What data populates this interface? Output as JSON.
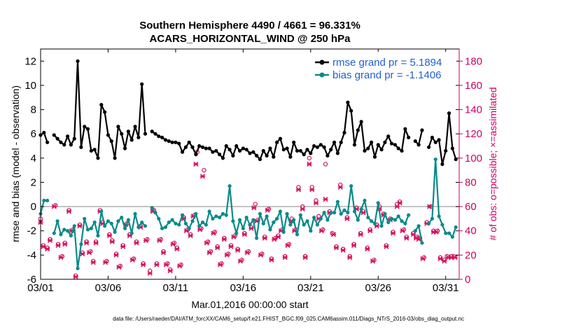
{
  "chart_data": {
    "type": "line",
    "title": "Southern Hemisphere 4490 / 4661 = 96.331%",
    "subtitle": "ACARS_HORIZONTAL_WIND @ 250 hPa",
    "xlabel": "Mar.01,2016 00:00:00 start",
    "ylabel_left": "rmse and bias (model - observation)",
    "ylabel_right": "# of obs: o=possible; ×=assimilated",
    "footnote": "data file: /Users/raeder/DAI/ATM_forcXX/CAM6_setup/f.e21.FHIST_BGC.f09_025.CAM6assim.011/Diags_NTrS_2016-03/obs_diag_output.nc",
    "x_ticks": [
      "03/01",
      "03/06",
      "03/11",
      "03/16",
      "03/21",
      "03/26",
      "03/31"
    ],
    "x_tick_days": [
      1,
      6,
      11,
      16,
      21,
      26,
      31
    ],
    "xlim": [
      1,
      32
    ],
    "ylim_left": [
      -6,
      13
    ],
    "yticks_left": [
      -6,
      -4,
      -2,
      0,
      2,
      4,
      6,
      8,
      10,
      12
    ],
    "ylim_right": [
      0,
      190
    ],
    "yticks_right": [
      0,
      20,
      40,
      60,
      80,
      100,
      120,
      140,
      160,
      180
    ],
    "grid": false,
    "legend_placement": "top-right",
    "legend": [
      "rmse grand pr = 5.1894",
      "bias grand pr = -1.1406"
    ],
    "colors": {
      "rmse": "#000000",
      "bias": "#0a8a8a",
      "obs": "#d6135f",
      "zero_line": "#b0b0b0"
    },
    "series": [
      {
        "name": "rmse grand pr = 5.1894",
        "x": [
          1,
          1.25,
          1.5,
          1.75,
          2,
          2.25,
          2.5,
          2.75,
          3,
          3.25,
          3.5,
          3.75,
          4,
          4.25,
          4.5,
          4.75,
          5,
          5.25,
          5.5,
          5.75,
          6,
          6.25,
          6.5,
          6.75,
          7,
          7.25,
          7.5,
          7.75,
          8,
          8.25,
          8.5,
          8.75,
          9,
          9.25,
          9.5,
          9.75,
          10,
          10.25,
          10.5,
          10.75,
          11,
          11.25,
          11.5,
          11.75,
          12,
          12.25,
          12.5,
          12.75,
          13,
          13.25,
          13.5,
          13.75,
          14,
          14.25,
          14.5,
          14.75,
          15,
          15.25,
          15.5,
          15.75,
          16,
          16.25,
          16.5,
          16.75,
          17,
          17.25,
          17.5,
          17.75,
          18,
          18.25,
          18.5,
          18.75,
          19,
          19.25,
          19.5,
          19.75,
          20,
          20.25,
          20.5,
          20.75,
          21,
          21.25,
          21.5,
          21.75,
          22,
          22.25,
          22.5,
          22.75,
          23,
          23.25,
          23.5,
          23.75,
          24,
          24.25,
          24.5,
          24.75,
          25,
          25.25,
          25.5,
          25.75,
          26,
          26.25,
          26.5,
          26.75,
          27,
          27.25,
          27.5,
          27.75,
          28,
          28.25,
          28.5,
          28.75,
          29,
          29.25,
          29.5,
          29.75,
          30,
          30.25,
          30.5,
          30.75,
          31,
          31.25,
          31.5,
          31.75
        ],
        "values": [
          5.9,
          6.1,
          5.3,
          null,
          5.9,
          5.6,
          5.3,
          5.1,
          5.8,
          5.1,
          5.6,
          12.0,
          4.9,
          6.6,
          6.4,
          4.6,
          4.7,
          4.0,
          8.4,
          7.8,
          5.9,
          5.4,
          4.0,
          6.6,
          6.0,
          4.8,
          6.2,
          5.5,
          6.6,
          5.7,
          10.1,
          6.0,
          null,
          6.2,
          6.0,
          5.8,
          5.7,
          5.5,
          5.4,
          5.3,
          5.3,
          5.2,
          4.5,
          4.9,
          5.3,
          4.9,
          4.3,
          5.0,
          4.9,
          4.8,
          4.8,
          4.5,
          4.6,
          4.3,
          4.0,
          5.0,
          4.7,
          4.2,
          5.0,
          4.6,
          4.8,
          4.7,
          4.4,
          4.5,
          4.2,
          3.9,
          4.6,
          4.2,
          4.8,
          4.1,
          5.3,
          5.6,
          4.7,
          4.8,
          4.1,
          5.3,
          4.6,
          4.6,
          4.3,
          4.7,
          4.4,
          5.0,
          4.9,
          5.1,
          4.9,
          4.2,
          4.7,
          5.3,
          4.4,
          5.3,
          6.1,
          8.6,
          7.9,
          5.1,
          6.3,
          7.0,
          4.6,
          4.8,
          5.3,
          4.1,
          5.1,
          4.7,
          5.3,
          5.8,
          5.2,
          5.1,
          4.8,
          4.6,
          6.4,
          5.7,
          null,
          5.4,
          5.1,
          6.3,
          null,
          4.9,
          5.7,
          5.3,
          5.5,
          3.5,
          4.6,
          7.7,
          4.8,
          3.9
        ]
      },
      {
        "name": "bias grand pr = -1.1406",
        "x": [
          1,
          1.25,
          1.5,
          1.75,
          2,
          2.25,
          2.5,
          2.75,
          3,
          3.25,
          3.5,
          3.75,
          4,
          4.25,
          4.5,
          4.75,
          5,
          5.25,
          5.5,
          5.75,
          6,
          6.25,
          6.5,
          6.75,
          7,
          7.25,
          7.5,
          7.75,
          8,
          8.25,
          8.5,
          8.75,
          9,
          9.25,
          9.5,
          9.75,
          10,
          10.25,
          10.5,
          10.75,
          11,
          11.25,
          11.5,
          11.75,
          12,
          12.25,
          12.5,
          12.75,
          13,
          13.25,
          13.5,
          13.75,
          14,
          14.25,
          14.5,
          14.75,
          15,
          15.25,
          15.5,
          15.75,
          16,
          16.25,
          16.5,
          16.75,
          17,
          17.25,
          17.5,
          17.75,
          18,
          18.25,
          18.5,
          18.75,
          19,
          19.25,
          19.5,
          19.75,
          20,
          20.25,
          20.5,
          20.75,
          21,
          21.25,
          21.5,
          21.75,
          22,
          22.25,
          22.5,
          22.75,
          23,
          23.25,
          23.5,
          23.75,
          24,
          24.25,
          24.5,
          24.75,
          25,
          25.25,
          25.5,
          25.75,
          26,
          26.25,
          26.5,
          26.75,
          27,
          27.25,
          27.5,
          27.75,
          28,
          28.25,
          28.5,
          28.75,
          29,
          29.25,
          29.5,
          29.75,
          30,
          30.25,
          30.5,
          30.75,
          31,
          31.25,
          31.5,
          31.75
        ],
        "values": [
          -0.6,
          0.5,
          0.5,
          null,
          -2.2,
          -1.2,
          -2.3,
          -1.9,
          -2.0,
          -2.4,
          -1.6,
          -5.1,
          -3.1,
          -1.0,
          -1.9,
          -1.8,
          -1.3,
          -2.4,
          -0.4,
          -1.6,
          -1.2,
          -1.4,
          -2.1,
          -1.2,
          -0.9,
          -1.8,
          -1.1,
          -2.2,
          -0.6,
          -1.7,
          -1.3,
          -1.6,
          null,
          -0.1,
          -0.5,
          -1.0,
          -1.8,
          -1.7,
          -1.3,
          -1.1,
          -1.4,
          -1.5,
          -0.7,
          -1.4,
          -1.8,
          -1.2,
          -0.6,
          -1.6,
          -1.3,
          -1.5,
          -0.4,
          -1.0,
          -0.8,
          -0.9,
          -0.6,
          -0.7,
          1.7,
          -1.2,
          -2.2,
          -1.1,
          -1.8,
          -0.9,
          -1.5,
          -1.1,
          -2.6,
          -0.6,
          -1.4,
          -0.8,
          -1.9,
          -1.3,
          -1.0,
          -0.4,
          -2.1,
          -0.6,
          -1.5,
          -1.1,
          -2.3,
          -0.7,
          -1.5,
          -1.2,
          -2.0,
          -0.9,
          -1.5,
          -1.0,
          -0.5,
          -1.1,
          -0.5,
          -0.5,
          0.4,
          -0.6,
          -0.3,
          -0.5,
          1.7,
          -0.4,
          -1.1,
          -0.2,
          0.5,
          -0.9,
          -1.2,
          -1.4,
          0.3,
          -1.6,
          -0.6,
          -1.3,
          -1.0,
          -1.1,
          -0.8,
          -1.2,
          -1.4,
          -0.7,
          null,
          -2.0,
          -1.6,
          -3.0,
          null,
          -1.4,
          -1.0,
          3.9,
          -0.8,
          -1.5,
          -2.2,
          -2.2,
          -2.5,
          -1.7
        ]
      }
    ],
    "obs_counts_assimilated": [
      [
        1.0,
        47
      ],
      [
        1.2,
        27
      ],
      [
        1.5,
        25
      ],
      [
        1.7,
        32
      ],
      [
        2.0,
        60
      ],
      [
        2.3,
        28
      ],
      [
        2.5,
        18
      ],
      [
        2.8,
        29
      ],
      [
        3.1,
        56
      ],
      [
        3.3,
        40
      ],
      [
        3.6,
        2
      ],
      [
        3.9,
        44
      ],
      [
        4.1,
        21
      ],
      [
        4.4,
        30
      ],
      [
        4.6,
        22
      ],
      [
        4.9,
        14
      ],
      [
        5.1,
        30
      ],
      [
        5.4,
        56
      ],
      [
        5.6,
        46
      ],
      [
        5.8,
        14
      ],
      [
        6.1,
        36
      ],
      [
        6.3,
        31
      ],
      [
        6.6,
        20
      ],
      [
        6.8,
        10
      ],
      [
        7.1,
        27
      ],
      [
        7.3,
        45
      ],
      [
        7.6,
        36
      ],
      [
        7.8,
        16
      ],
      [
        8.1,
        30
      ],
      [
        8.4,
        43
      ],
      [
        8.6,
        12
      ],
      [
        8.8,
        32
      ],
      [
        9.1,
        5
      ],
      [
        9.3,
        56
      ],
      [
        9.6,
        12
      ],
      [
        9.8,
        32
      ],
      [
        10.1,
        22
      ],
      [
        10.3,
        12
      ],
      [
        10.6,
        7
      ],
      [
        10.8,
        29
      ],
      [
        11.1,
        25
      ],
      [
        11.3,
        11
      ],
      [
        11.6,
        50
      ],
      [
        11.8,
        40
      ],
      [
        12.1,
        36
      ],
      [
        12.3,
        52
      ],
      [
        12.5,
        95
      ],
      [
        12.8,
        41
      ],
      [
        13.0,
        85
      ],
      [
        13.3,
        30
      ],
      [
        13.5,
        22
      ],
      [
        13.8,
        38
      ],
      [
        14.1,
        26
      ],
      [
        14.3,
        12
      ],
      [
        14.6,
        33
      ],
      [
        14.8,
        20
      ],
      [
        15.1,
        27
      ],
      [
        15.3,
        35
      ],
      [
        15.6,
        24
      ],
      [
        15.8,
        15
      ],
      [
        16.1,
        37
      ],
      [
        16.3,
        22
      ],
      [
        16.6,
        42
      ],
      [
        16.8,
        59
      ],
      [
        17.0,
        48
      ],
      [
        17.3,
        20
      ],
      [
        17.6,
        34
      ],
      [
        17.8,
        57
      ],
      [
        18.1,
        16
      ],
      [
        18.3,
        33
      ],
      [
        18.6,
        35
      ],
      [
        18.8,
        40
      ],
      [
        19.1,
        18
      ],
      [
        19.3,
        28
      ],
      [
        19.6,
        48
      ],
      [
        19.8,
        40
      ],
      [
        20.1,
        74
      ],
      [
        20.4,
        58
      ],
      [
        20.6,
        18
      ],
      [
        20.9,
        95
      ],
      [
        21.1,
        74
      ],
      [
        21.4,
        63
      ],
      [
        21.6,
        50
      ],
      [
        21.8,
        40
      ],
      [
        22.1,
        66
      ],
      [
        22.4,
        55
      ],
      [
        22.7,
        37
      ],
      [
        22.9,
        26
      ],
      [
        23.2,
        76
      ],
      [
        23.4,
        24
      ],
      [
        23.7,
        50
      ],
      [
        23.9,
        18
      ],
      [
        24.2,
        28
      ],
      [
        24.4,
        58
      ],
      [
        24.7,
        37
      ],
      [
        24.9,
        55
      ],
      [
        25.2,
        25
      ],
      [
        25.4,
        40
      ],
      [
        25.6,
        15
      ],
      [
        25.9,
        44
      ],
      [
        26.1,
        58
      ],
      [
        26.4,
        53
      ],
      [
        26.6,
        27
      ],
      [
        26.9,
        49
      ],
      [
        27.1,
        38
      ],
      [
        27.4,
        60
      ],
      [
        27.6,
        63
      ],
      [
        27.8,
        40
      ],
      [
        28.1,
        34
      ],
      [
        28.6,
        37
      ],
      [
        28.8,
        34
      ],
      [
        29.0,
        33
      ],
      [
        29.3,
        17
      ],
      [
        29.6,
        46
      ],
      [
        29.8,
        60
      ],
      [
        30.1,
        39
      ],
      [
        30.3,
        39
      ],
      [
        30.6,
        17
      ],
      [
        30.9,
        15
      ],
      [
        31.2,
        18
      ],
      [
        31.4,
        18
      ],
      [
        31.7,
        18
      ]
    ],
    "obs_counts_possible": [
      [
        1.0,
        50
      ],
      [
        1.2,
        28
      ],
      [
        1.5,
        26
      ],
      [
        1.7,
        33
      ],
      [
        2.1,
        61
      ],
      [
        2.3,
        29
      ],
      [
        2.6,
        19
      ],
      [
        2.8,
        30
      ],
      [
        3.1,
        57
      ],
      [
        3.4,
        41
      ],
      [
        3.6,
        3
      ],
      [
        3.9,
        45
      ],
      [
        4.1,
        22
      ],
      [
        4.4,
        31
      ],
      [
        4.7,
        23
      ],
      [
        4.9,
        15
      ],
      [
        5.1,
        31
      ],
      [
        5.4,
        57
      ],
      [
        5.6,
        47
      ],
      [
        5.9,
        15
      ],
      [
        6.1,
        37
      ],
      [
        6.3,
        32
      ],
      [
        6.6,
        21
      ],
      [
        6.9,
        11
      ],
      [
        7.1,
        28
      ],
      [
        7.4,
        46
      ],
      [
        7.6,
        37
      ],
      [
        7.9,
        17
      ],
      [
        8.1,
        31
      ],
      [
        8.4,
        44
      ],
      [
        8.6,
        13
      ],
      [
        8.9,
        33
      ],
      [
        9.1,
        7
      ],
      [
        9.4,
        57
      ],
      [
        9.6,
        13
      ],
      [
        9.9,
        33
      ],
      [
        10.1,
        23
      ],
      [
        10.4,
        13
      ],
      [
        10.6,
        8
      ],
      [
        10.9,
        30
      ],
      [
        11.1,
        26
      ],
      [
        11.4,
        12
      ],
      [
        11.6,
        51
      ],
      [
        11.9,
        41
      ],
      [
        12.1,
        37
      ],
      [
        12.4,
        53
      ],
      [
        12.6,
        105
      ],
      [
        12.9,
        42
      ],
      [
        13.1,
        90
      ],
      [
        13.4,
        31
      ],
      [
        13.6,
        23
      ],
      [
        13.9,
        39
      ],
      [
        14.1,
        27
      ],
      [
        14.4,
        13
      ],
      [
        14.6,
        34
      ],
      [
        14.9,
        21
      ],
      [
        15.1,
        28
      ],
      [
        15.4,
        36
      ],
      [
        15.6,
        25
      ],
      [
        15.9,
        16
      ],
      [
        16.1,
        38
      ],
      [
        16.4,
        23
      ],
      [
        16.6,
        43
      ],
      [
        16.9,
        62
      ],
      [
        17.1,
        49
      ],
      [
        17.4,
        21
      ],
      [
        17.6,
        35
      ],
      [
        17.9,
        58
      ],
      [
        18.1,
        17
      ],
      [
        18.4,
        34
      ],
      [
        18.6,
        36
      ],
      [
        18.9,
        41
      ],
      [
        19.1,
        19
      ],
      [
        19.4,
        29
      ],
      [
        19.6,
        50
      ],
      [
        19.9,
        41
      ],
      [
        20.1,
        76
      ],
      [
        20.4,
        60
      ],
      [
        20.6,
        19
      ],
      [
        20.9,
        100
      ],
      [
        21.1,
        76
      ],
      [
        21.4,
        65
      ],
      [
        21.6,
        52
      ],
      [
        21.9,
        41
      ],
      [
        22.1,
        95
      ],
      [
        22.4,
        56
      ],
      [
        22.6,
        38
      ],
      [
        22.9,
        27
      ],
      [
        23.2,
        78
      ],
      [
        23.4,
        25
      ],
      [
        23.7,
        51
      ],
      [
        23.9,
        19
      ],
      [
        24.2,
        29
      ],
      [
        24.4,
        59
      ],
      [
        24.7,
        38
      ],
      [
        24.9,
        56
      ],
      [
        25.2,
        26
      ],
      [
        25.4,
        41
      ],
      [
        25.7,
        16
      ],
      [
        25.9,
        45
      ],
      [
        26.1,
        60
      ],
      [
        26.4,
        54
      ],
      [
        26.6,
        28
      ],
      [
        26.9,
        50
      ],
      [
        27.1,
        39
      ],
      [
        27.4,
        62
      ],
      [
        27.6,
        64
      ],
      [
        27.9,
        41
      ],
      [
        28.1,
        35
      ],
      [
        28.6,
        38
      ],
      [
        28.9,
        35
      ],
      [
        29.1,
        34
      ],
      [
        29.4,
        18
      ],
      [
        29.6,
        47
      ],
      [
        29.9,
        60
      ],
      [
        30.1,
        40
      ],
      [
        30.4,
        40
      ],
      [
        30.6,
        18
      ],
      [
        30.9,
        16
      ],
      [
        31.1,
        19
      ],
      [
        31.4,
        19
      ],
      [
        31.6,
        19
      ]
    ]
  }
}
